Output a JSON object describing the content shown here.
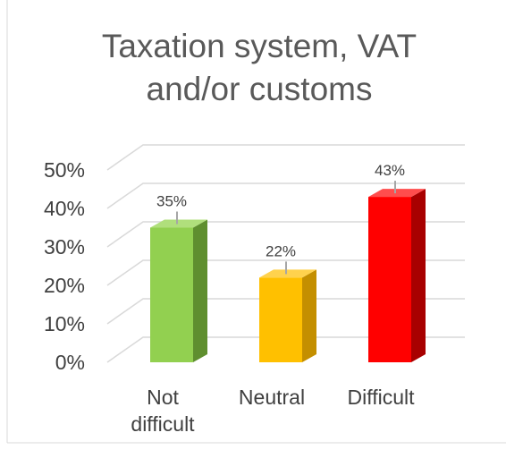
{
  "chart_data": {
    "type": "bar",
    "title_lines": [
      "Taxation system, VAT",
      "and/or customs"
    ],
    "categories": [
      [
        "Not",
        "difficult"
      ],
      [
        "Neutral"
      ],
      [
        "Difficult"
      ]
    ],
    "values": [
      35,
      22,
      43
    ],
    "data_labels": [
      "35%",
      "22%",
      "43%"
    ],
    "y_ticks": [
      "0%",
      "10%",
      "20%",
      "30%",
      "40%",
      "50%"
    ],
    "ylim": [
      0,
      50
    ],
    "grid": true,
    "legend": "none",
    "bar_colors": [
      {
        "front": "#92d050",
        "side": "#5f8f2f",
        "top": "#b0df7c"
      },
      {
        "front": "#ffc000",
        "side": "#c48f00",
        "top": "#ffd24d"
      },
      {
        "front": "#ff0000",
        "side": "#a80000",
        "top": "#ff4d4d"
      }
    ],
    "colors": {
      "grid": "#d9d9d9",
      "axis_text": "#404040",
      "title_text": "#595959",
      "leader_line": "#a6a6a6",
      "border": "#d9d9d9"
    }
  }
}
